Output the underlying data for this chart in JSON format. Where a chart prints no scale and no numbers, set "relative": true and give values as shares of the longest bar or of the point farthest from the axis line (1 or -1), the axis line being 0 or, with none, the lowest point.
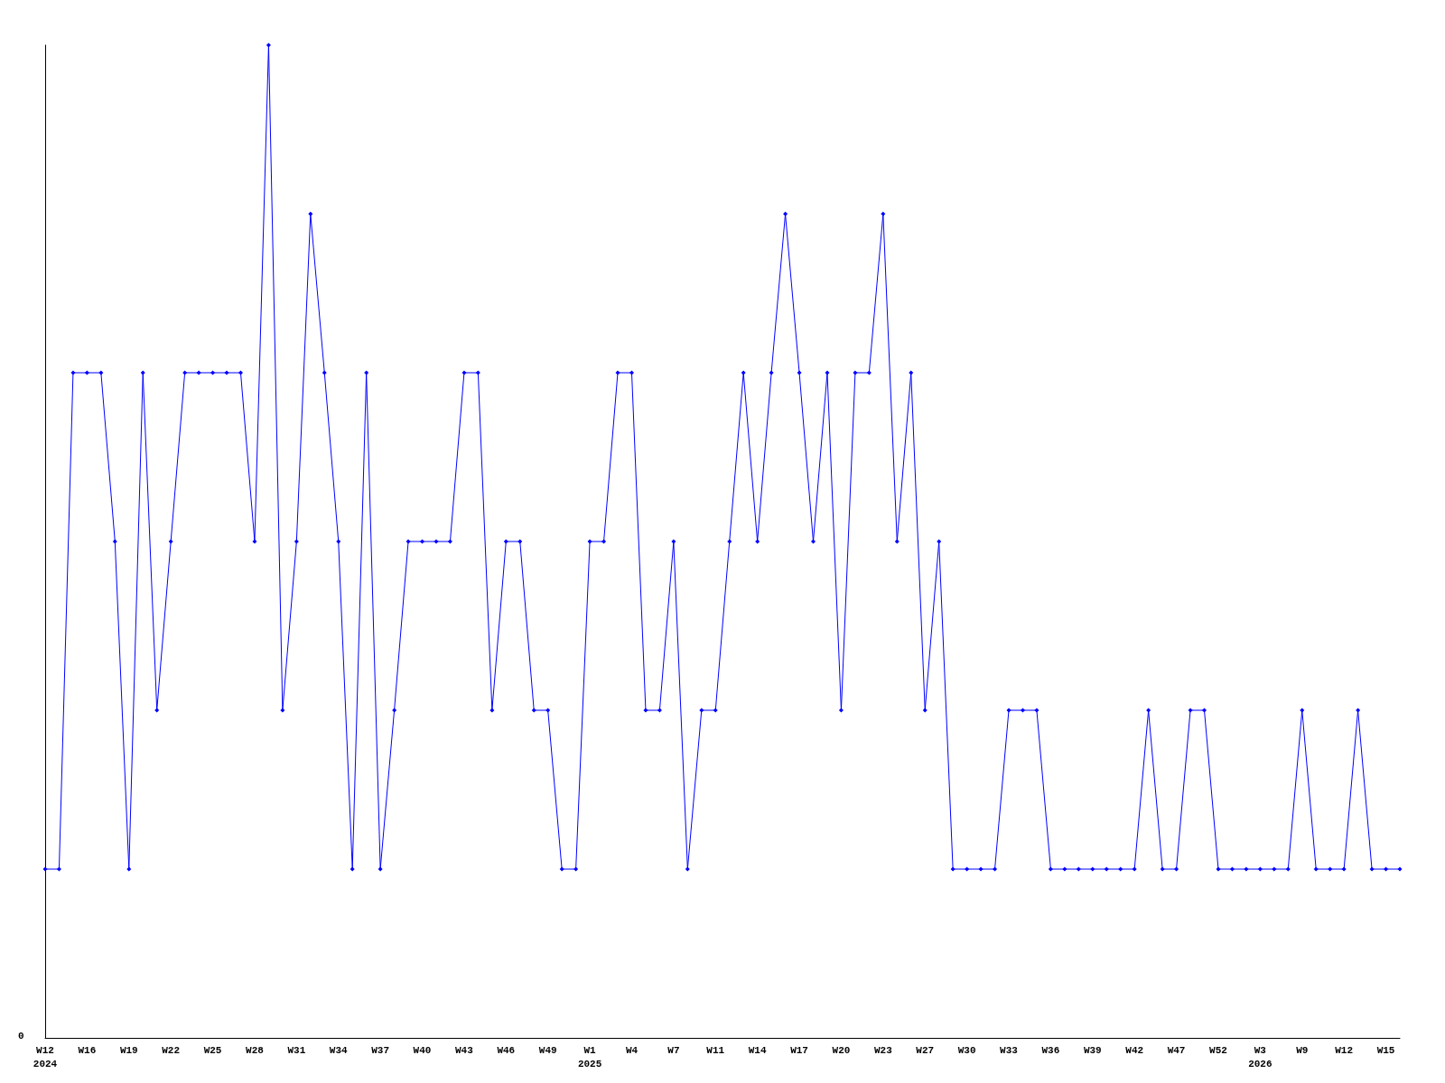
{
  "chart_data": {
    "type": "line",
    "relative": true,
    "marker": "diamond",
    "annotations": [
      "0"
    ],
    "categories": [
      "W12\n2024",
      null,
      null,
      "W16",
      null,
      null,
      "W19",
      null,
      null,
      "W22",
      null,
      null,
      "W25",
      null,
      null,
      "W28",
      null,
      null,
      "W31",
      null,
      null,
      "W34",
      null,
      null,
      "W37",
      null,
      null,
      "W40",
      null,
      null,
      "W43",
      null,
      null,
      "W46",
      null,
      null,
      "W49",
      null,
      null,
      "W1\n2025",
      null,
      null,
      "W4",
      null,
      null,
      "W7",
      null,
      null,
      "W11",
      null,
      null,
      "W14",
      null,
      null,
      "W17",
      null,
      null,
      "W20",
      null,
      null,
      "W23",
      null,
      null,
      "W27",
      null,
      null,
      "W30",
      null,
      null,
      "W33",
      null,
      null,
      "W36",
      null,
      null,
      "W39",
      null,
      null,
      "W42",
      null,
      null,
      "W47",
      null,
      null,
      "W52",
      null,
      null,
      "W3\n2026",
      null,
      null,
      "W9",
      null,
      null,
      "W12",
      null,
      null,
      "W15",
      null
    ],
    "series": [
      {
        "color": "#0000ff",
        "values": [
          0.17,
          0.17,
          0.67,
          0.67,
          0.67,
          0.5,
          0.17,
          0.67,
          0.33,
          0.5,
          0.67,
          0.67,
          0.67,
          0.67,
          0.67,
          0.5,
          1,
          0.33,
          0.5,
          0.83,
          0.67,
          0.5,
          0.17,
          0.67,
          0.17,
          0.33,
          0.5,
          0.5,
          0.5,
          0.5,
          0.67,
          0.67,
          0.33,
          0.5,
          0.5,
          0.33,
          0.33,
          0.17,
          0.17,
          0.5,
          0.5,
          0.67,
          0.67,
          0.33,
          0.33,
          0.5,
          0.17,
          0.33,
          0.33,
          0.5,
          0.67,
          0.5,
          0.67,
          0.83,
          0.67,
          0.5,
          0.67,
          0.33,
          0.67,
          0.67,
          0.83,
          0.5,
          0.67,
          0.33,
          0.5,
          0.17,
          0.17,
          0.17,
          0.17,
          0.33,
          0.33,
          0.33,
          0.17,
          0.17,
          0.17,
          0.17,
          0.17,
          0.17,
          0.17,
          0.33,
          0.17,
          0.17,
          0.33,
          0.33,
          0.17,
          0.17,
          0.17,
          0.17,
          0.17,
          0.17,
          0.33,
          0.17,
          0.17,
          0.17,
          0.33,
          0.17,
          0.17,
          0.17
        ]
      }
    ]
  }
}
